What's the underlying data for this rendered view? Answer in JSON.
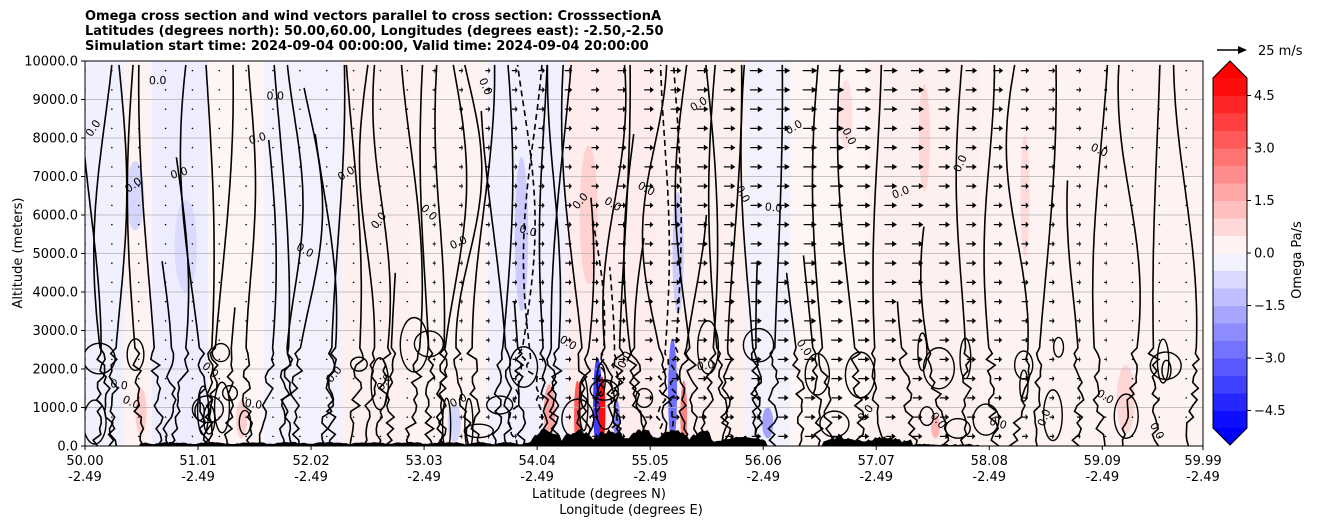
{
  "chart_data": {
    "type": "heatmap",
    "title_lines": [
      "Omega cross section and wind vectors parallel to cross section: CrosssectionA",
      "Latitudes (degrees north): 50.00,60.00, Longitudes (degrees east): -2.50,-2.50",
      "Simulation start time: 2024-09-04 00:00:00, Valid time: 2024-09-04 20:00:00"
    ],
    "xlabel_line1": "Latitude (degrees N)",
    "xlabel_line2": "Longitude (degrees E)",
    "ylabel": "Altitude (meters)",
    "xlim": [
      50.0,
      59.99
    ],
    "ylim": [
      0,
      10000
    ],
    "x_ticks": [
      {
        "lat": 50.0,
        "label_lat": "50.00",
        "label_lon": "-2.49"
      },
      {
        "lat": 51.01,
        "label_lat": "51.01",
        "label_lon": "-2.49"
      },
      {
        "lat": 52.02,
        "label_lat": "52.02",
        "label_lon": "-2.49"
      },
      {
        "lat": 53.03,
        "label_lat": "53.03",
        "label_lon": "-2.49"
      },
      {
        "lat": 54.04,
        "label_lat": "54.04",
        "label_lon": "-2.49"
      },
      {
        "lat": 55.05,
        "label_lat": "55.05",
        "label_lon": "-2.49"
      },
      {
        "lat": 56.06,
        "label_lat": "56.06",
        "label_lon": "-2.49"
      },
      {
        "lat": 57.07,
        "label_lat": "57.07",
        "label_lon": "-2.49"
      },
      {
        "lat": 58.08,
        "label_lat": "58.08",
        "label_lon": "-2.49"
      },
      {
        "lat": 59.09,
        "label_lat": "59.09",
        "label_lon": "-2.49"
      },
      {
        "lat": 59.99,
        "label_lat": "59.99",
        "label_lon": "-2.49"
      }
    ],
    "y_ticks": [
      {
        "value": 0,
        "label": "0.0"
      },
      {
        "value": 1000,
        "label": "1000.0"
      },
      {
        "value": 2000,
        "label": "2000.0"
      },
      {
        "value": 3000,
        "label": "3000.0"
      },
      {
        "value": 4000,
        "label": "4000.0"
      },
      {
        "value": 5000,
        "label": "5000.0"
      },
      {
        "value": 6000,
        "label": "6000.0"
      },
      {
        "value": 7000,
        "label": "7000.0"
      },
      {
        "value": 8000,
        "label": "8000.0"
      },
      {
        "value": 9000,
        "label": "9000.0"
      },
      {
        "value": 10000,
        "label": "10000.0"
      }
    ],
    "colorbar": {
      "label": "Omega Pa/s",
      "min": -5.0,
      "max": 5.0,
      "ticks": [
        {
          "value": 4.5,
          "label": "4.5"
        },
        {
          "value": 3.0,
          "label": "3.0"
        },
        {
          "value": 1.5,
          "label": "1.5"
        },
        {
          "value": 0.0,
          "label": "0.0"
        },
        {
          "value": -1.5,
          "label": "−1.5"
        },
        {
          "value": -3.0,
          "label": "−3.0"
        },
        {
          "value": -4.5,
          "label": "−4.5"
        }
      ],
      "extend": "both",
      "colormap": "bwr"
    },
    "quiver_key": {
      "label": "25 m/s",
      "speed": 25
    },
    "contour_level_label": "0.0",
    "wind_vectors": {
      "columns_lat": [
        50.0,
        50.24,
        50.48,
        50.72,
        50.96,
        51.2,
        51.44,
        51.68,
        51.92,
        52.16,
        52.4,
        52.64,
        52.88,
        53.12,
        53.36,
        53.6,
        53.84,
        54.08,
        54.32,
        54.56,
        54.8,
        55.04,
        55.28,
        55.52,
        55.76,
        56.0,
        56.24,
        56.48,
        56.72,
        56.96,
        57.2,
        57.44,
        57.68,
        57.92,
        58.16,
        58.4,
        58.64,
        58.88,
        59.12,
        59.36,
        59.6,
        59.84
      ],
      "speed_by_column_m_s": [
        0,
        0,
        0,
        0,
        0,
        0,
        0,
        0,
        0,
        0,
        0,
        0,
        2,
        4,
        5,
        6,
        7,
        8,
        9,
        10,
        11,
        12,
        13,
        14,
        15,
        16,
        17,
        18,
        18,
        18,
        17,
        16,
        15,
        14,
        12,
        10,
        8,
        6,
        4,
        2,
        1,
        0
      ],
      "levels_m": [
        250,
        750,
        1250,
        1750,
        2250,
        2750,
        3250,
        3750,
        4250,
        4750,
        5250,
        5750,
        6250,
        6750,
        7250,
        7750,
        8250,
        8750,
        9250,
        9750
      ]
    },
    "features": [
      {
        "label": "strong ascent (negative omega, blue) and descent (positive omega, red) cells over orography",
        "lat_range": [
          54.0,
          55.4
        ],
        "alt_range_m": [
          0,
          3000
        ]
      }
    ],
    "colors": {
      "positive": "#ff0000",
      "negative": "#0000ff",
      "terrain": "#000000",
      "grid": "#b0b0b0"
    }
  }
}
